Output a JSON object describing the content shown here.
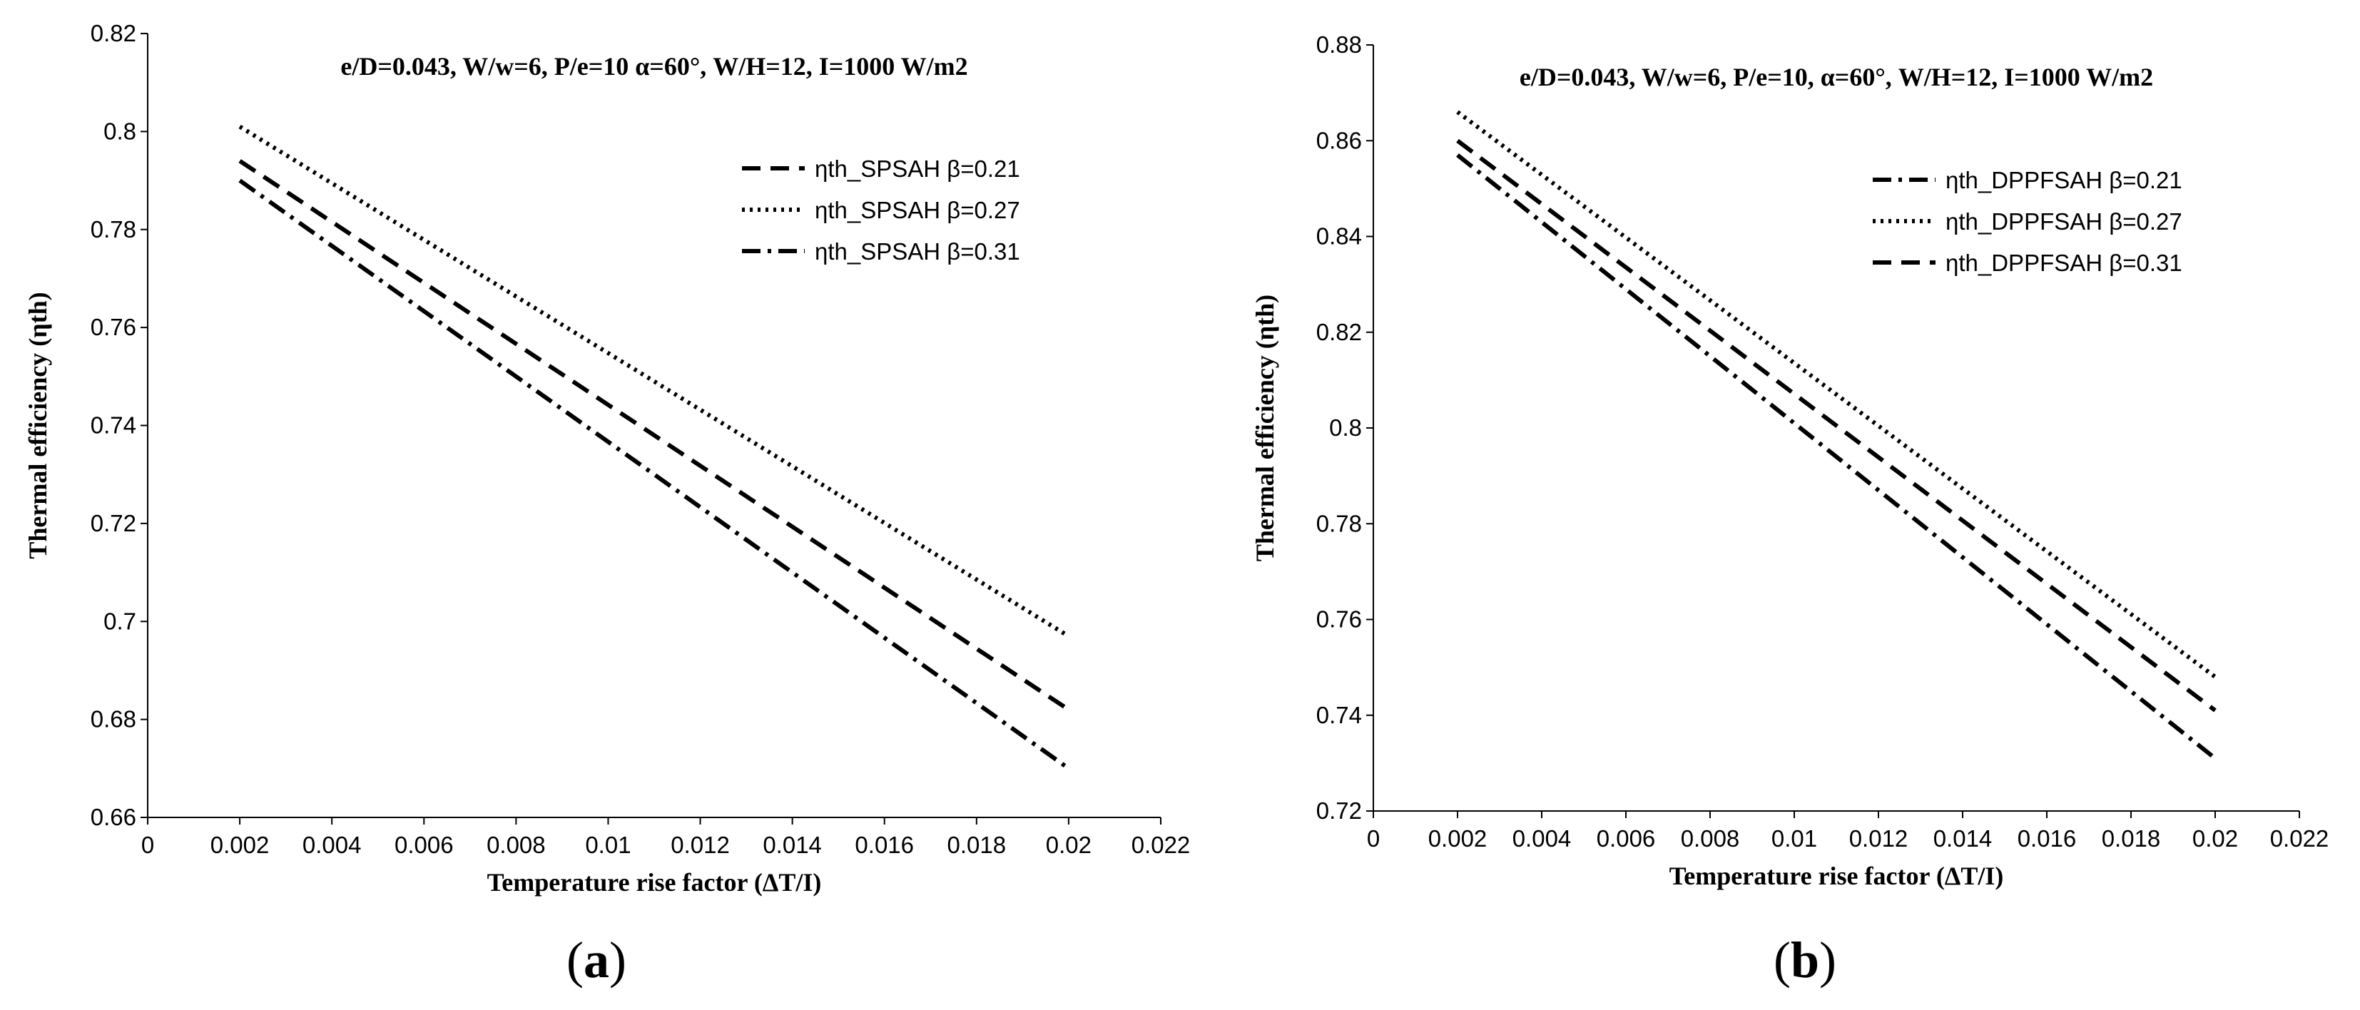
{
  "chart_data": [
    {
      "type": "line",
      "title": "e/D=0.043, W/w=6, P/e=10 α=60°, W/H=12, I=1000 W/m2",
      "xlabel": "Temperature rise factor (ΔT/I)",
      "ylabel": "Thermal efficiency (ηth)",
      "xlim": [
        0,
        0.022
      ],
      "ylim": [
        0.66,
        0.82
      ],
      "x_ticks": [
        0,
        0.002,
        0.004,
        0.006,
        0.008,
        0.01,
        0.012,
        0.014,
        0.016,
        0.018,
        0.02,
        0.022
      ],
      "x_tick_labels": [
        "0",
        "0.002",
        "0.004",
        "0.006",
        "0.008",
        "0.01",
        "0.012",
        "0.014",
        "0.016",
        "0.018",
        "0.02",
        "0.022"
      ],
      "y_ticks": [
        0.66,
        0.68,
        0.7,
        0.72,
        0.74,
        0.76,
        0.78,
        0.8,
        0.82
      ],
      "y_tick_labels": [
        "0.66",
        "0.68",
        "0.7",
        "0.72",
        "0.74",
        "0.76",
        "0.78",
        "0.8",
        "0.82"
      ],
      "legend_position": "top-right",
      "series": [
        {
          "name": "ηth_SPSAH β=0.21",
          "style": "dashed",
          "x": [
            0.002,
            0.02
          ],
          "y": [
            0.794,
            0.682
          ]
        },
        {
          "name": "ηth_SPSAH β=0.27",
          "style": "dotted",
          "x": [
            0.002,
            0.02
          ],
          "y": [
            0.801,
            0.697
          ]
        },
        {
          "name": "ηth_SPSAH β=0.31",
          "style": "dashdot",
          "x": [
            0.002,
            0.02
          ],
          "y": [
            0.79,
            0.67
          ]
        }
      ],
      "panel_label_paren_open": "(",
      "panel_label": "a",
      "panel_label_paren_close": ")"
    },
    {
      "type": "line",
      "title": "e/D=0.043, W/w=6, P/e=10, α=60°, W/H=12, I=1000 W/m2",
      "xlabel": "Temperature rise factor (ΔT/I)",
      "ylabel": "Thermal efficiency (ηth)",
      "xlim": [
        0,
        0.022
      ],
      "ylim": [
        0.72,
        0.88
      ],
      "x_ticks": [
        0,
        0.002,
        0.004,
        0.006,
        0.008,
        0.01,
        0.012,
        0.014,
        0.016,
        0.018,
        0.02,
        0.022
      ],
      "x_tick_labels": [
        "0",
        "0.002",
        "0.004",
        "0.006",
        "0.008",
        "0.01",
        "0.012",
        "0.014",
        "0.016",
        "0.018",
        "0.02",
        "0.022"
      ],
      "y_ticks": [
        0.72,
        0.74,
        0.76,
        0.78,
        0.8,
        0.82,
        0.84,
        0.86,
        0.88
      ],
      "y_tick_labels": [
        "0.72",
        "0.74",
        "0.76",
        "0.78",
        "0.8",
        "0.82",
        "0.84",
        "0.86",
        "0.88"
      ],
      "legend_position": "top-right",
      "series": [
        {
          "name": "ηth_DPPFSAH β=0.21",
          "style": "dashdot",
          "x": [
            0.002,
            0.02
          ],
          "y": [
            0.857,
            0.731
          ]
        },
        {
          "name": "ηth_DPPFSAH β=0.27",
          "style": "dotted",
          "x": [
            0.002,
            0.02
          ],
          "y": [
            0.866,
            0.748
          ]
        },
        {
          "name": "ηth_DPPFSAH β=0.31",
          "style": "dashed",
          "x": [
            0.002,
            0.02
          ],
          "y": [
            0.86,
            0.741
          ]
        }
      ],
      "panel_label_paren_open": "(",
      "panel_label": "b",
      "panel_label_paren_close": ")"
    }
  ]
}
